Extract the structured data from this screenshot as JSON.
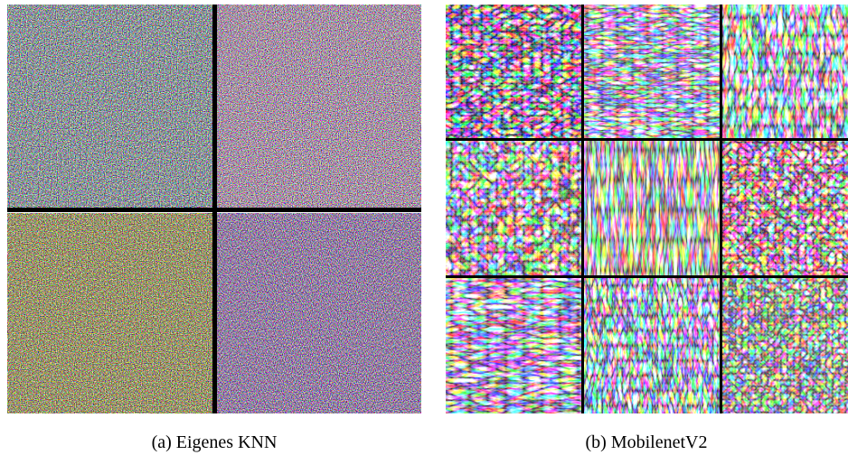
{
  "figure": {
    "subfigures": [
      {
        "caption": "(a) Eigenes KNN"
      },
      {
        "caption": "(b) MobilenetV2"
      }
    ]
  }
}
